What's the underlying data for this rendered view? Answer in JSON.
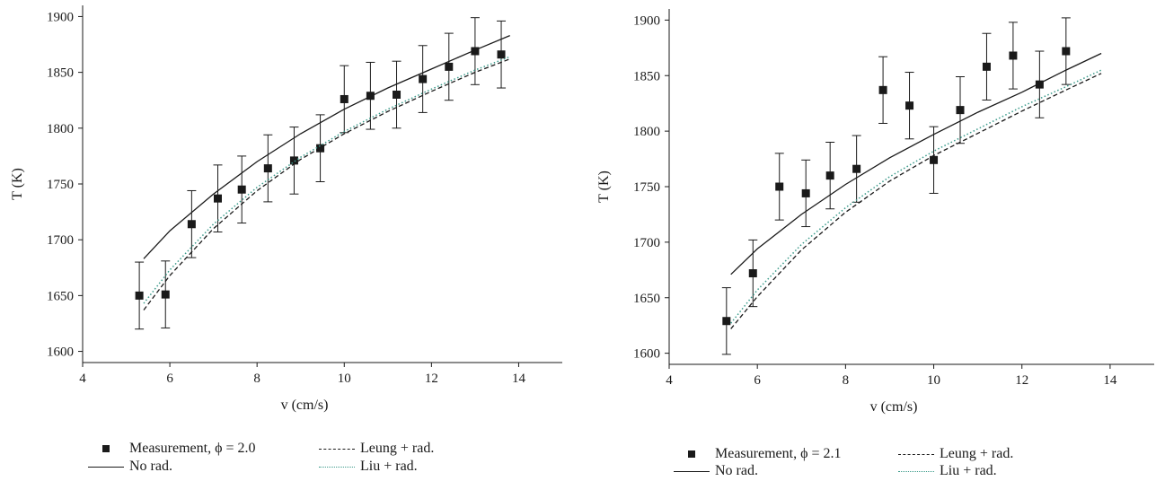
{
  "chart_data": [
    {
      "type": "scatter",
      "xlabel": "v (cm/s)",
      "ylabel": "T (K)",
      "xlim": [
        4,
        15
      ],
      "ylim": [
        1590,
        1910
      ],
      "xticks": [
        "4",
        "6",
        "8",
        "10",
        "12",
        "14"
      ],
      "yticks": [
        "1600",
        "1650",
        "1700",
        "1750",
        "1800",
        "1850",
        "1900"
      ],
      "grid": false,
      "legend": {
        "measurement": "Measurement, ϕ = 2.0",
        "no_rad": "No rad.",
        "leung": "Leung + rad.",
        "liu": "Liu + rad."
      },
      "colors": {
        "measurement": "#1a1a1a",
        "no_rad": "#1a1a1a",
        "leung": "#1a1a1a",
        "liu": "#3a9a8a"
      },
      "series": [
        {
          "name": "Measurement, ϕ = 2.0",
          "style": "square-errorbar",
          "x": [
            5.3,
            5.9,
            6.5,
            7.1,
            7.65,
            8.25,
            8.85,
            9.45,
            10.0,
            10.6,
            11.2,
            11.8,
            12.4,
            13.0,
            13.6
          ],
          "y": [
            1650,
            1651,
            1714,
            1737,
            1745,
            1764,
            1771,
            1782,
            1826,
            1829,
            1830,
            1844,
            1855,
            1869,
            1866
          ],
          "error": 30
        },
        {
          "name": "No rad.",
          "style": "solid",
          "x": [
            5.4,
            6,
            7,
            8,
            9,
            10,
            11,
            12,
            13,
            13.8
          ],
          "y": [
            1683,
            1708,
            1741,
            1770,
            1795,
            1817,
            1836,
            1853,
            1870,
            1883
          ]
        },
        {
          "name": "Leung + rad.",
          "style": "dashed",
          "x": [
            5.4,
            6,
            7,
            8,
            9,
            10,
            11,
            12,
            13,
            13.8
          ],
          "y": [
            1637,
            1668,
            1710,
            1744,
            1772,
            1795,
            1815,
            1833,
            1850,
            1862
          ]
        },
        {
          "name": "Liu + rad.",
          "style": "dotted",
          "x": [
            5.4,
            6,
            7,
            8,
            9,
            10,
            11,
            12,
            13,
            13.8
          ],
          "y": [
            1643,
            1673,
            1714,
            1747,
            1774,
            1797,
            1817,
            1835,
            1852,
            1864
          ]
        }
      ]
    },
    {
      "type": "scatter",
      "xlabel": "v (cm/s)",
      "ylabel": "T (K)",
      "xlim": [
        4,
        15
      ],
      "ylim": [
        1590,
        1910
      ],
      "xticks": [
        "4",
        "6",
        "8",
        "10",
        "12",
        "14"
      ],
      "yticks": [
        "1600",
        "1650",
        "1700",
        "1750",
        "1800",
        "1850",
        "1900"
      ],
      "grid": false,
      "legend": {
        "measurement": "Measurement, ϕ = 2.1",
        "no_rad": "No rad.",
        "leung": "Leung + rad.",
        "liu": "Liu + rad."
      },
      "colors": {
        "measurement": "#1a1a1a",
        "no_rad": "#1a1a1a",
        "leung": "#1a1a1a",
        "liu": "#3a9a8a"
      },
      "series": [
        {
          "name": "Measurement, ϕ = 2.1",
          "style": "square-errorbar",
          "x": [
            5.3,
            5.9,
            6.5,
            7.1,
            7.65,
            8.25,
            8.85,
            9.45,
            10.0,
            10.6,
            11.2,
            11.8,
            12.4,
            13.0
          ],
          "y": [
            1629,
            1672,
            1750,
            1744,
            1760,
            1766,
            1837,
            1823,
            1774,
            1819,
            1858,
            1868,
            1842,
            1872
          ],
          "error": 30
        },
        {
          "name": "No rad.",
          "style": "solid",
          "x": [
            5.4,
            6,
            7,
            8,
            9,
            10,
            11,
            12,
            13,
            13.8
          ],
          "y": [
            1671,
            1694,
            1725,
            1752,
            1776,
            1797,
            1817,
            1835,
            1855,
            1870
          ]
        },
        {
          "name": "Leung + rad.",
          "style": "dashed",
          "x": [
            5.4,
            6,
            7,
            8,
            9,
            10,
            11,
            12,
            13,
            13.8
          ],
          "y": [
            1622,
            1651,
            1693,
            1727,
            1755,
            1778,
            1798,
            1818,
            1837,
            1852
          ]
        },
        {
          "name": "Liu + rad.",
          "style": "dotted",
          "x": [
            5.4,
            6,
            7,
            8,
            9,
            10,
            11,
            12,
            13,
            13.8
          ],
          "y": [
            1627,
            1657,
            1698,
            1731,
            1759,
            1782,
            1802,
            1822,
            1840,
            1855
          ]
        }
      ]
    }
  ]
}
